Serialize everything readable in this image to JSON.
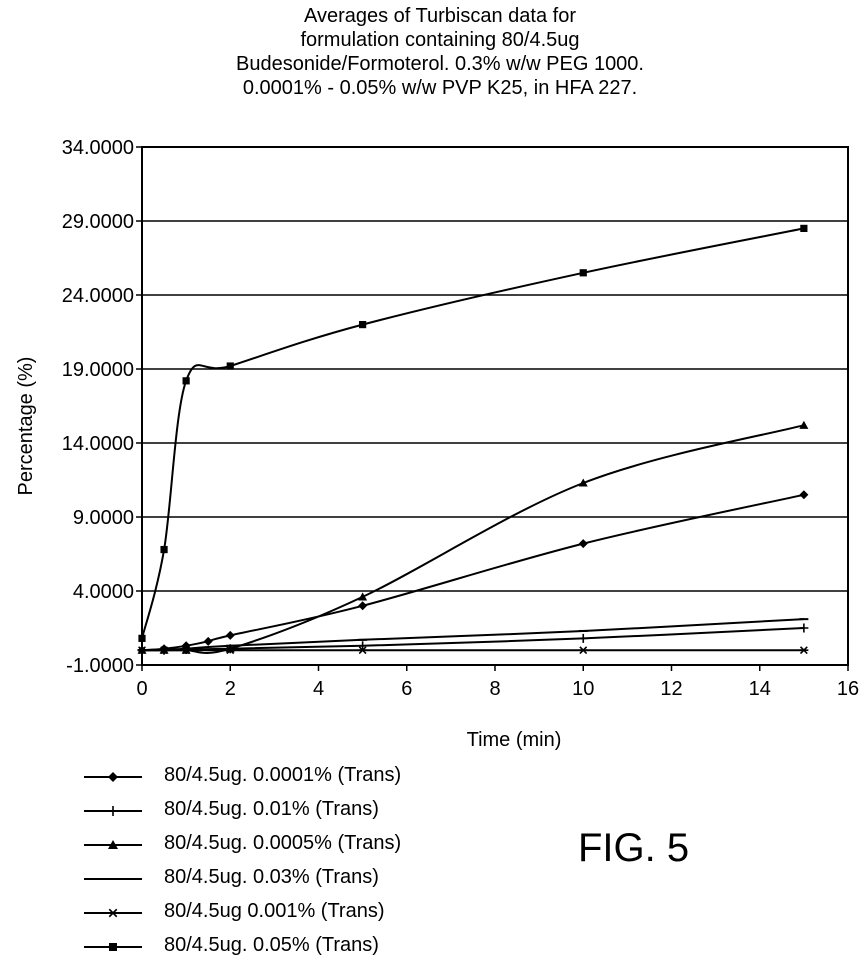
{
  "chart_data": {
    "type": "line",
    "title": [
      "Averages of Turbiscan data for",
      "formulation containing 80/4.5ug",
      "Budesonide/Formoterol.  0.3% w/w PEG 1000.",
      "0.0001% - 0.05% w/w PVP K25, in HFA 227."
    ],
    "xlabel": "Time (min)",
    "ylabel": "Percentage (%)",
    "xlim": [
      0,
      16
    ],
    "ylim": [
      -1,
      34
    ],
    "xticks": [
      "0",
      "2",
      "4",
      "6",
      "8",
      "10",
      "12",
      "14",
      "16"
    ],
    "yticks": [
      "-1.0000",
      "4.0000",
      "9.0000",
      "14.0000",
      "19.0000",
      "24.0000",
      "29.0000",
      "34.0000"
    ],
    "grid": "horizontal",
    "legend_position": "bottom",
    "series": [
      {
        "name": "80/4.5ug. 0.0001% (Trans)",
        "marker": "diamond",
        "x": [
          0,
          0.5,
          1,
          1.5,
          2,
          5,
          10,
          15
        ],
        "y": [
          0,
          0.1,
          0.3,
          0.6,
          1.0,
          3.0,
          7.2,
          10.5
        ]
      },
      {
        "name": "80/4.5ug. 0.01% (Trans)",
        "marker": "plus",
        "x": [
          0,
          0.5,
          1,
          2,
          5,
          10,
          15
        ],
        "y": [
          0,
          0,
          0.05,
          0.1,
          0.3,
          0.8,
          1.5
        ]
      },
      {
        "name": "80/4.5ug. 0.0005% (Trans)",
        "marker": "triangle",
        "x": [
          0,
          0.5,
          1,
          2,
          5,
          10,
          15
        ],
        "y": [
          0,
          0,
          0,
          0.1,
          3.6,
          11.3,
          15.2
        ]
      },
      {
        "name": "80/4.5ug. 0.03% (Trans)",
        "marker": "dash",
        "x": [
          0,
          0.5,
          1,
          2,
          5,
          10,
          15
        ],
        "y": [
          0,
          0.05,
          0.1,
          0.3,
          0.7,
          1.3,
          2.1
        ]
      },
      {
        "name": "80/4.5ug 0.001% (Trans)",
        "marker": "star",
        "x": [
          0,
          0.5,
          1,
          2,
          5,
          10,
          15
        ],
        "y": [
          0,
          0,
          0,
          0,
          0,
          0,
          0
        ]
      },
      {
        "name": "80/4.5ug. 0.05% (Trans)",
        "marker": "square",
        "x": [
          0,
          0.5,
          1,
          2,
          5,
          10,
          15
        ],
        "y": [
          0.8,
          6.8,
          18.2,
          19.2,
          22.0,
          25.5,
          28.5
        ]
      }
    ]
  },
  "figure_label": "FIG. 5",
  "colors": {
    "line": "#000000",
    "background": "#ffffff"
  }
}
